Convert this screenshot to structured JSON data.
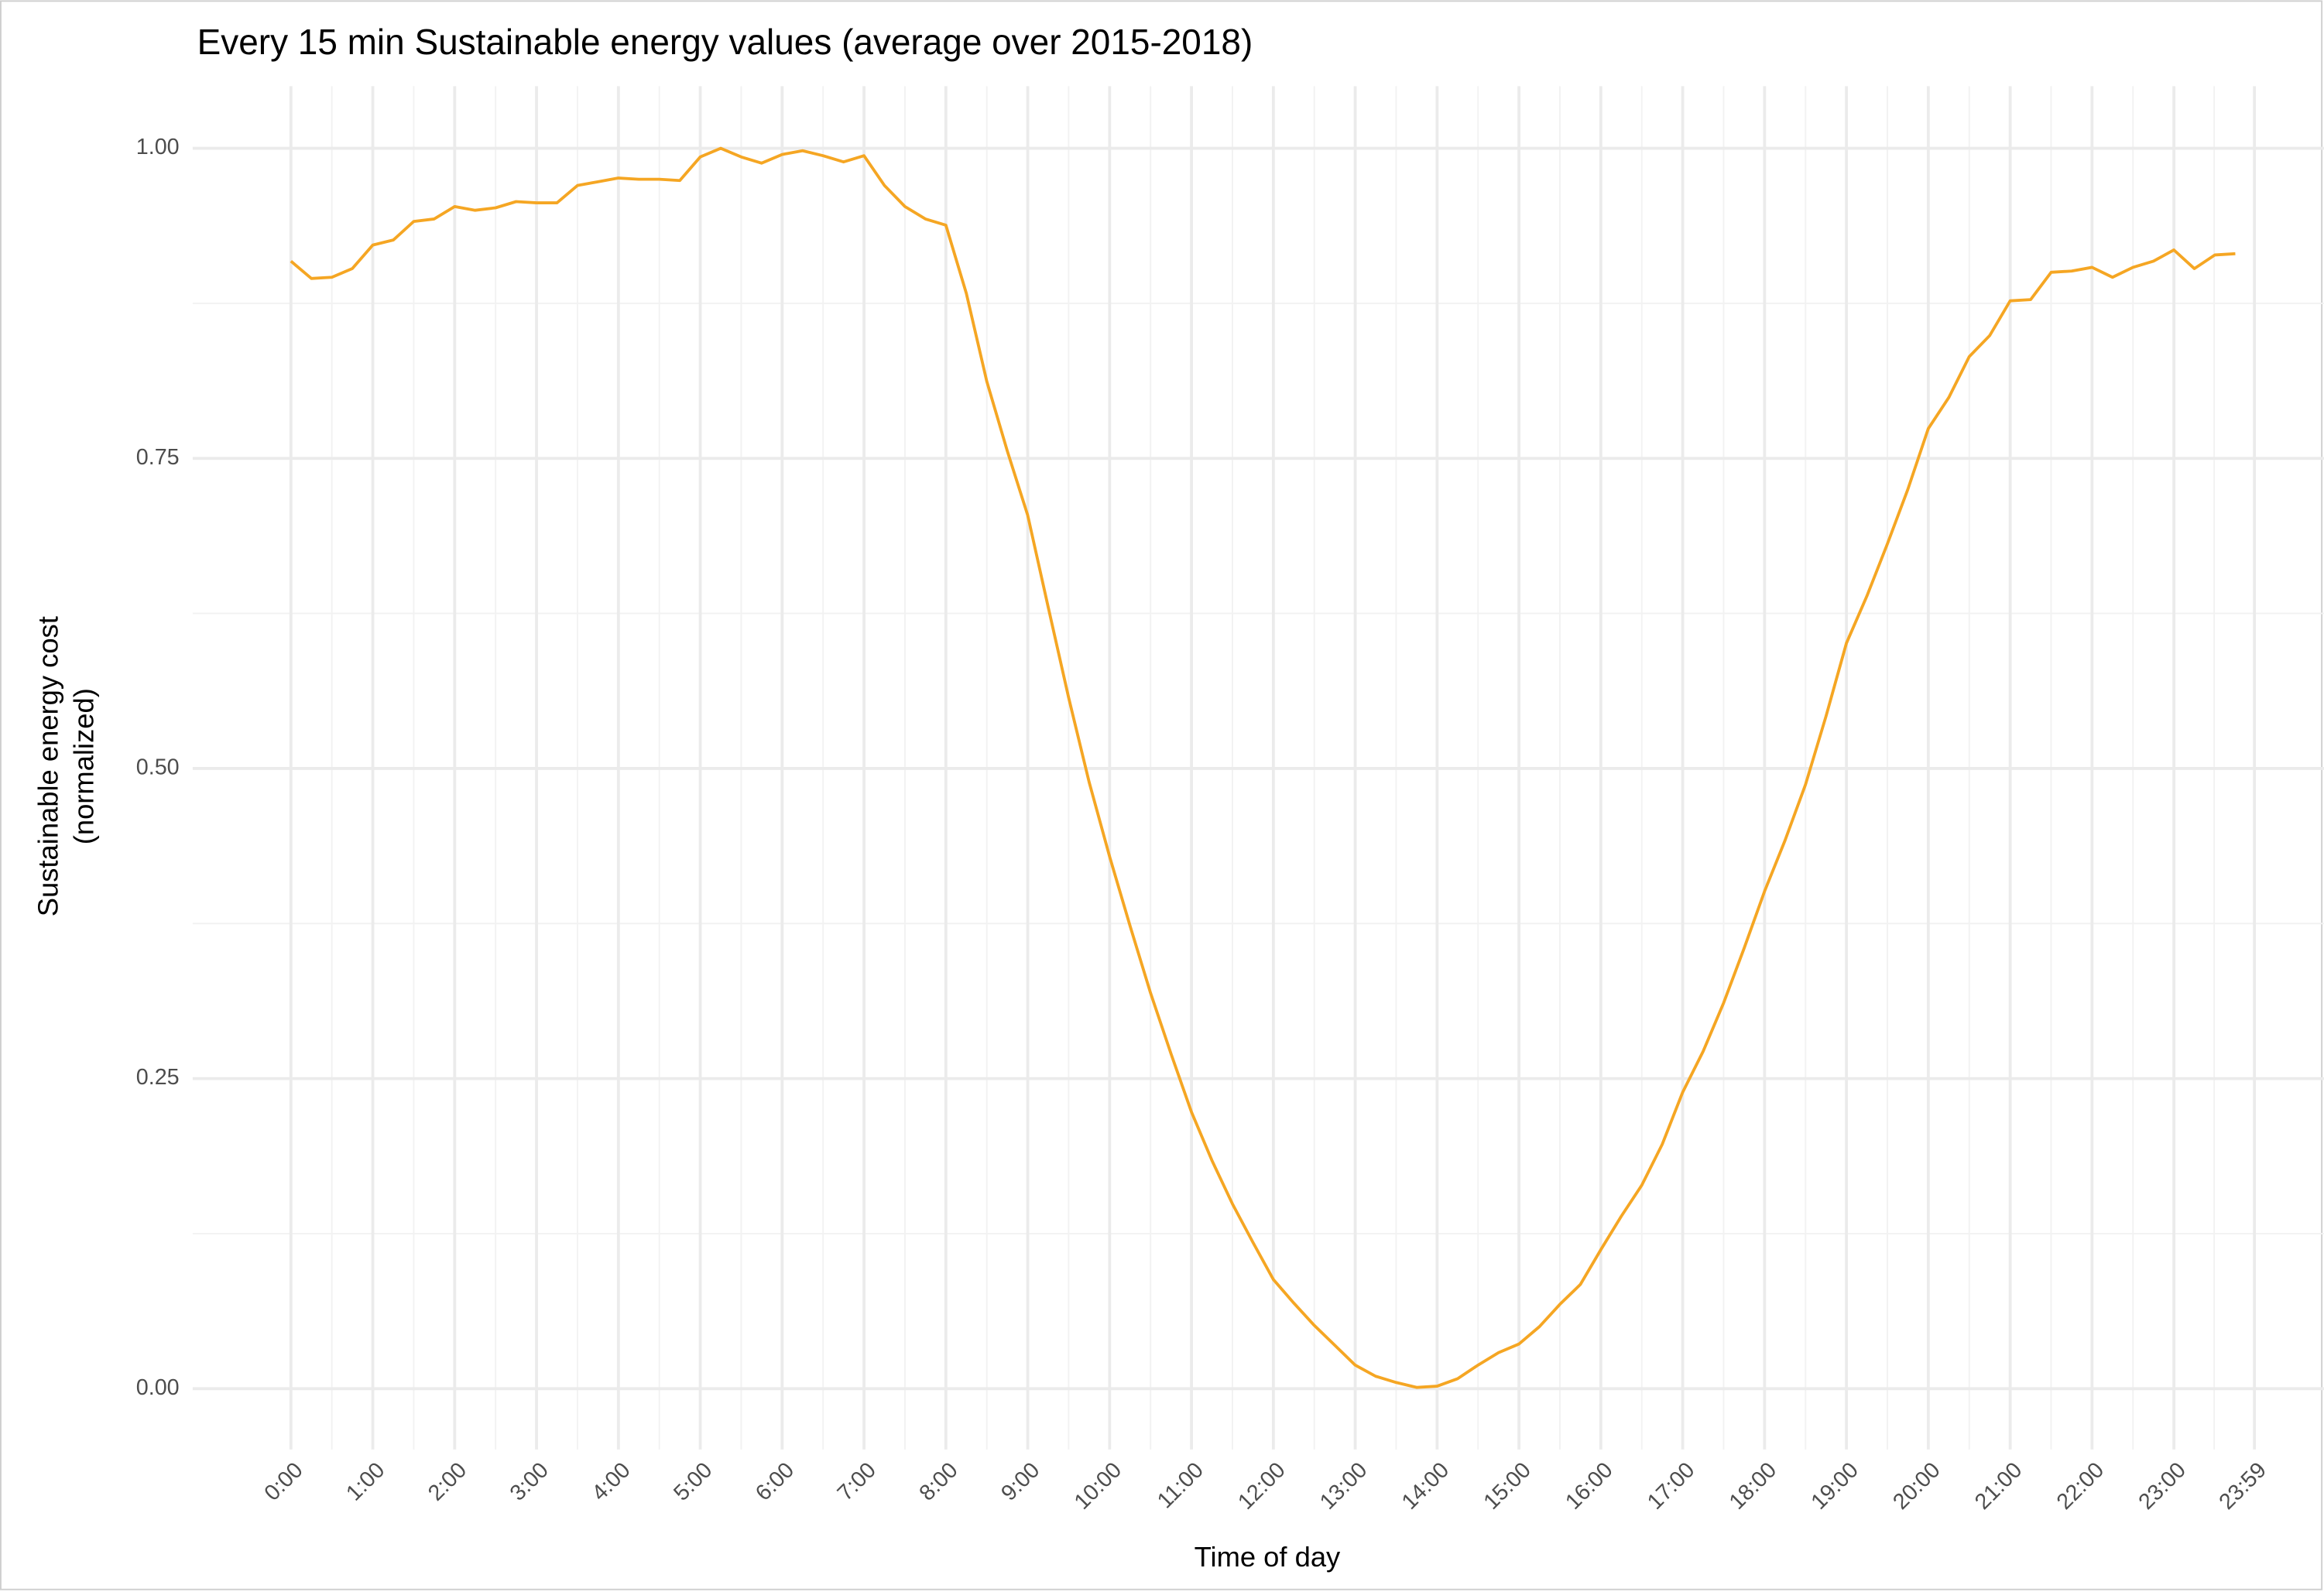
{
  "chart_data": {
    "type": "line",
    "title": "Every 15 min Sustainable energy values (average over 2015-2018)",
    "xlabel": "Time of day",
    "ylabel": [
      "Sustainable energy cost",
      "(normalized)"
    ],
    "color": "#f5a623",
    "grid": true,
    "x": [
      0,
      15,
      30,
      45,
      60,
      75,
      90,
      105,
      120,
      135,
      150,
      165,
      180,
      195,
      210,
      225,
      240,
      255,
      270,
      285,
      300,
      315,
      330,
      345,
      360,
      375,
      390,
      405,
      420,
      435,
      450,
      465,
      480,
      495,
      510,
      525,
      540,
      555,
      570,
      585,
      600,
      615,
      630,
      645,
      660,
      675,
      690,
      705,
      720,
      735,
      750,
      765,
      780,
      795,
      810,
      825,
      840,
      855,
      870,
      885,
      900,
      915,
      930,
      945,
      960,
      975,
      990,
      1005,
      1020,
      1035,
      1050,
      1065,
      1080,
      1095,
      1110,
      1125,
      1140,
      1155,
      1170,
      1185,
      1200,
      1215,
      1230,
      1245,
      1260,
      1275,
      1290,
      1305,
      1320,
      1335,
      1350,
      1365,
      1380,
      1395,
      1410,
      1425
    ],
    "values": [
      0.909,
      0.895,
      0.896,
      0.903,
      0.922,
      0.926,
      0.941,
      0.943,
      0.953,
      0.95,
      0.952,
      0.957,
      0.956,
      0.956,
      0.97,
      0.973,
      0.976,
      0.975,
      0.975,
      0.974,
      0.993,
      1.0,
      0.993,
      0.988,
      0.995,
      0.998,
      0.994,
      0.989,
      0.994,
      0.97,
      0.953,
      0.943,
      0.938,
      0.883,
      0.812,
      0.756,
      0.704,
      0.63,
      0.557,
      0.489,
      0.429,
      0.373,
      0.319,
      0.27,
      0.223,
      0.184,
      0.149,
      0.118,
      0.088,
      0.069,
      0.051,
      0.035,
      0.019,
      0.01,
      0.005,
      0.001,
      0.002,
      0.008,
      0.019,
      0.029,
      0.036,
      0.05,
      0.068,
      0.084,
      0.112,
      0.139,
      0.164,
      0.197,
      0.239,
      0.272,
      0.311,
      0.355,
      0.401,
      0.442,
      0.487,
      0.542,
      0.601,
      0.639,
      0.681,
      0.725,
      0.774,
      0.799,
      0.832,
      0.849,
      0.877,
      0.878,
      0.9,
      0.901,
      0.904,
      0.896,
      0.904,
      0.909,
      0.918,
      0.903,
      0.914,
      0.915
    ],
    "xlim": [
      -72,
      1490
    ],
    "xticks": [
      {
        "value": 0,
        "label": "0:00"
      },
      {
        "value": 60,
        "label": "1:00"
      },
      {
        "value": 120,
        "label": "2:00"
      },
      {
        "value": 180,
        "label": "3:00"
      },
      {
        "value": 240,
        "label": "4:00"
      },
      {
        "value": 300,
        "label": "5:00"
      },
      {
        "value": 360,
        "label": "6:00"
      },
      {
        "value": 420,
        "label": "7:00"
      },
      {
        "value": 480,
        "label": "8:00"
      },
      {
        "value": 540,
        "label": "9:00"
      },
      {
        "value": 600,
        "label": "10:00"
      },
      {
        "value": 660,
        "label": "11:00"
      },
      {
        "value": 720,
        "label": "12:00"
      },
      {
        "value": 780,
        "label": "13:00"
      },
      {
        "value": 840,
        "label": "14:00"
      },
      {
        "value": 900,
        "label": "15:00"
      },
      {
        "value": 960,
        "label": "16:00"
      },
      {
        "value": 1020,
        "label": "17:00"
      },
      {
        "value": 1080,
        "label": "18:00"
      },
      {
        "value": 1140,
        "label": "19:00"
      },
      {
        "value": 1200,
        "label": "20:00"
      },
      {
        "value": 1260,
        "label": "21:00"
      },
      {
        "value": 1320,
        "label": "22:00"
      },
      {
        "value": 1380,
        "label": "23:00"
      },
      {
        "value": 1439,
        "label": "23:59"
      }
    ],
    "ylim": [
      -0.049,
      1.05
    ],
    "yticks": [
      {
        "value": 0,
        "label": "0.00"
      },
      {
        "value": 0.25,
        "label": "0.25"
      },
      {
        "value": 0.5,
        "label": "0.50"
      },
      {
        "value": 0.75,
        "label": "0.75"
      },
      {
        "value": 1,
        "label": "1.00"
      }
    ]
  }
}
